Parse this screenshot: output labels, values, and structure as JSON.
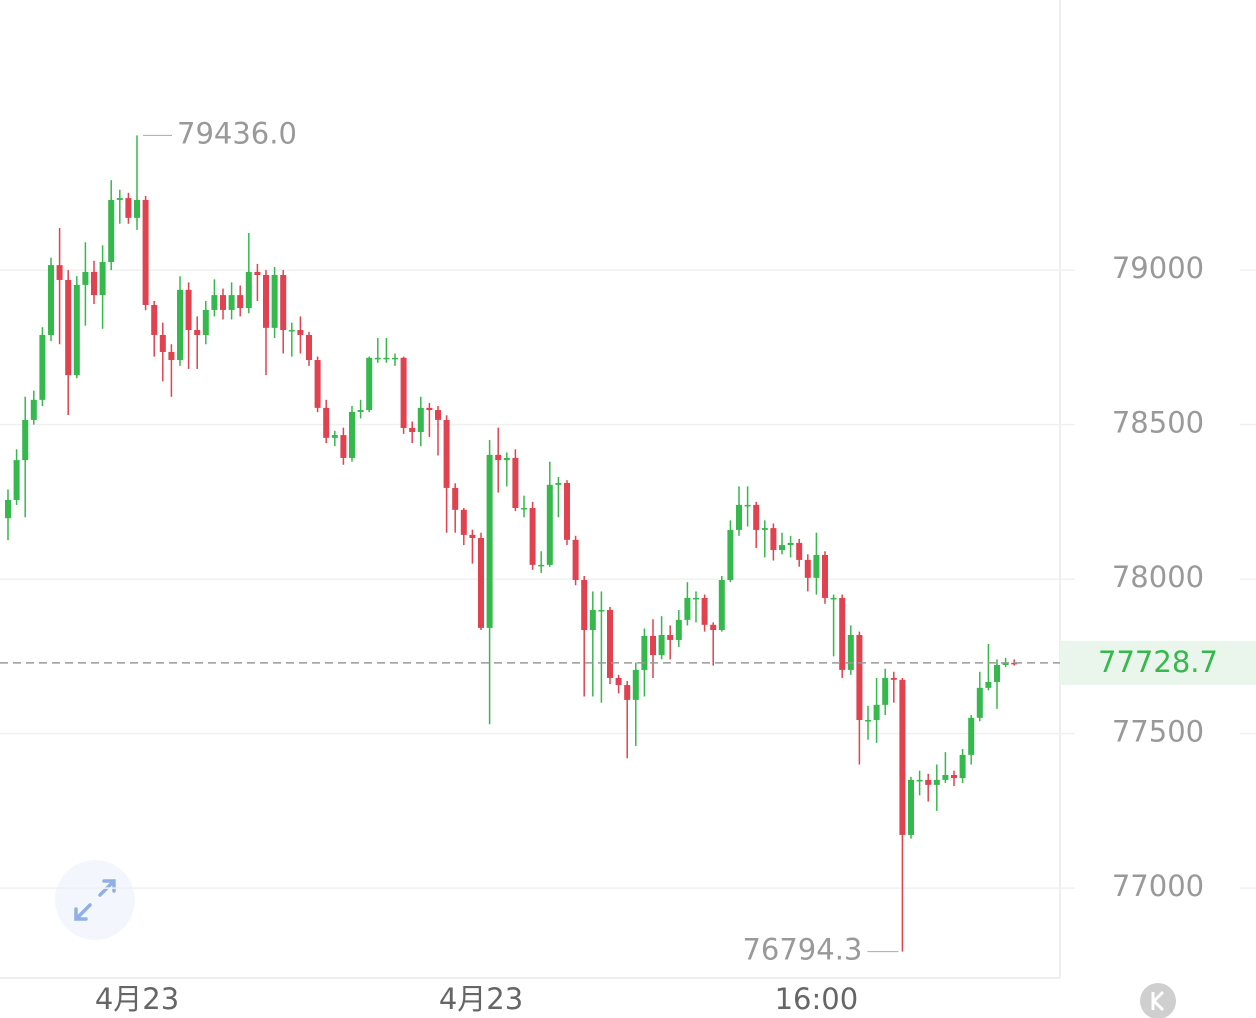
{
  "chart_data": {
    "type": "candlestick",
    "up_color": "#35b84c",
    "down_color": "#e0424f",
    "ylim": [
      76709,
      79874
    ],
    "yticks": [
      77000,
      77500,
      78000,
      78500,
      79000
    ],
    "grid": true,
    "high_label": "79436.0",
    "low_label": "76794.3",
    "categories": [
      null,
      null,
      null,
      null,
      null,
      null,
      null,
      null,
      null,
      null,
      null,
      null,
      null,
      null,
      null,
      "4月23",
      null,
      null,
      null,
      null,
      null,
      null,
      null,
      null,
      null,
      null,
      null,
      null,
      null,
      null,
      null,
      null,
      null,
      null,
      null,
      null,
      null,
      null,
      null,
      null,
      null,
      null,
      null,
      null,
      null,
      null,
      null,
      null,
      null,
      null,
      null,
      null,
      null,
      null,
      null,
      "4月23",
      null,
      null,
      null,
      null,
      null,
      null,
      null,
      null,
      null,
      null,
      null,
      null,
      null,
      null,
      null,
      null,
      null,
      null,
      null,
      null,
      null,
      null,
      null,
      null,
      null,
      null,
      null,
      null,
      null,
      null,
      null,
      null,
      null,
      null,
      null,
      null,
      null,
      null,
      "16:00",
      null,
      null,
      null,
      null,
      null,
      null,
      null,
      null,
      null,
      null,
      null,
      null,
      null,
      null,
      null,
      null,
      null,
      null,
      null,
      null,
      null,
      null,
      null
    ],
    "open": [
      78197,
      78256,
      78385,
      78515,
      78580,
      78790,
      79016,
      78968,
      78660,
      78952,
      78994,
      78919,
      79026,
      79227,
      79233,
      79169,
      79227,
      78887,
      78790,
      78735,
      78709,
      78936,
      78806,
      78790,
      78871,
      78919,
      78871,
      78919,
      78877,
      78994,
      78984,
      78813,
      78984,
      78806,
      78806,
      78790,
      78709,
      78554,
      78457,
      78466,
      78392,
      78541,
      78547,
      78716,
      78716,
      78716,
      78716,
      78489,
      78476,
      78554,
      78547,
      78515,
      78295,
      78224,
      78143,
      78133,
      77842,
      78402,
      78385,
      78392,
      78230,
      78230,
      78046,
      78046,
      78305,
      78311,
      78127,
      77997,
      77835,
      77900,
      77900,
      77680,
      77657,
      77609,
      77706,
      77816,
      77754,
      77819,
      77803,
      77868,
      77939,
      77939,
      77852,
      77835,
      77997,
      78159,
      78240,
      78240,
      78159,
      78165,
      78094,
      78110,
      78117,
      78062,
      78004,
      78078,
      77939,
      77939,
      77706,
      77819,
      77544,
      77544,
      77593,
      77680,
      77674,
      77172,
      77350,
      77350,
      77334,
      77350,
      77366,
      77356,
      77431,
      77551,
      77648,
      77667,
      77722,
      77729
    ],
    "high": [
      78290,
      78420,
      78590,
      78610,
      78815,
      79040,
      79136,
      79000,
      78980,
      79090,
      79030,
      79080,
      79291,
      79260,
      79250,
      79436,
      79240,
      78900,
      78830,
      78760,
      78980,
      78960,
      78850,
      78900,
      78970,
      78940,
      78960,
      78950,
      79120,
      79020,
      79000,
      79010,
      79000,
      78830,
      78850,
      78800,
      78720,
      78580,
      78480,
      78490,
      78560,
      78580,
      78720,
      78780,
      78780,
      78730,
      78720,
      78510,
      78590,
      78570,
      78560,
      78530,
      78310,
      78230,
      78160,
      78150,
      78450,
      78490,
      78410,
      78420,
      78270,
      78250,
      78090,
      78380,
      78330,
      78320,
      78140,
      78010,
      77960,
      77960,
      77910,
      77690,
      77670,
      77730,
      77840,
      77870,
      77880,
      77850,
      77900,
      77990,
      77960,
      77950,
      77860,
      78010,
      78190,
      78300,
      78300,
      78250,
      78190,
      78180,
      78150,
      78140,
      78130,
      78080,
      78150,
      78090,
      77950,
      77950,
      77850,
      77830,
      77590,
      77680,
      77710,
      77700,
      77680,
      77360,
      77380,
      77370,
      77400,
      77440,
      77380,
      77450,
      77560,
      77700,
      77790,
      77740,
      77745,
      77740
    ],
    "low": [
      78126,
      78240,
      78200,
      78500,
      78560,
      78770,
      78760,
      78531,
      78650,
      78820,
      78890,
      78810,
      79000,
      79150,
      79150,
      79130,
      78870,
      78720,
      78640,
      78590,
      78690,
      78680,
      78680,
      78760,
      78850,
      78840,
      78840,
      78850,
      78860,
      78900,
      78660,
      78780,
      78730,
      78720,
      78730,
      78690,
      78540,
      78440,
      78430,
      78370,
      78380,
      78520,
      78540,
      78700,
      78700,
      78690,
      78470,
      78440,
      78430,
      78460,
      78400,
      78150,
      78150,
      78110,
      78050,
      77835,
      77530,
      78280,
      78300,
      78220,
      78200,
      78030,
      78020,
      78040,
      78200,
      78110,
      77980,
      77620,
      77620,
      77600,
      77660,
      77630,
      77420,
      77460,
      77620,
      77680,
      77740,
      77740,
      77780,
      77850,
      77860,
      77830,
      77720,
      77830,
      77990,
      78140,
      78170,
      78100,
      78070,
      78060,
      78080,
      78070,
      78040,
      77960,
      77950,
      77920,
      77750,
      77680,
      77690,
      77400,
      77480,
      77470,
      77560,
      77600,
      76794.3,
      77160,
      77300,
      77280,
      77250,
      77340,
      77330,
      77340,
      77400,
      77540,
      77640,
      77580,
      77715,
      77720
    ],
    "close": [
      78256,
      78385,
      78515,
      78580,
      78790,
      79016,
      78968,
      78660,
      78952,
      78994,
      78919,
      79026,
      79227,
      79233,
      79169,
      79227,
      78887,
      78790,
      78735,
      78709,
      78936,
      78806,
      78790,
      78871,
      78919,
      78871,
      78919,
      78877,
      78994,
      78984,
      78813,
      78984,
      78806,
      78806,
      78790,
      78709,
      78554,
      78457,
      78466,
      78392,
      78541,
      78547,
      78716,
      78716,
      78716,
      78716,
      78489,
      78476,
      78554,
      78547,
      78515,
      78295,
      78224,
      78143,
      78133,
      77842,
      78402,
      78385,
      78392,
      78230,
      78230,
      78046,
      78046,
      78305,
      78311,
      78127,
      77997,
      77835,
      77900,
      77900,
      77680,
      77657,
      77609,
      77706,
      77816,
      77754,
      77819,
      77803,
      77868,
      77939,
      77939,
      77852,
      77835,
      77997,
      78159,
      78240,
      78240,
      78159,
      78165,
      78094,
      78110,
      78117,
      78062,
      78004,
      78078,
      77939,
      77939,
      77706,
      77819,
      77544,
      77544,
      77593,
      77680,
      77674,
      77172,
      77350,
      77350,
      77334,
      77350,
      77366,
      77356,
      77431,
      77551,
      77648,
      77667,
      77722,
      77729,
      77728.7
    ]
  }
}
